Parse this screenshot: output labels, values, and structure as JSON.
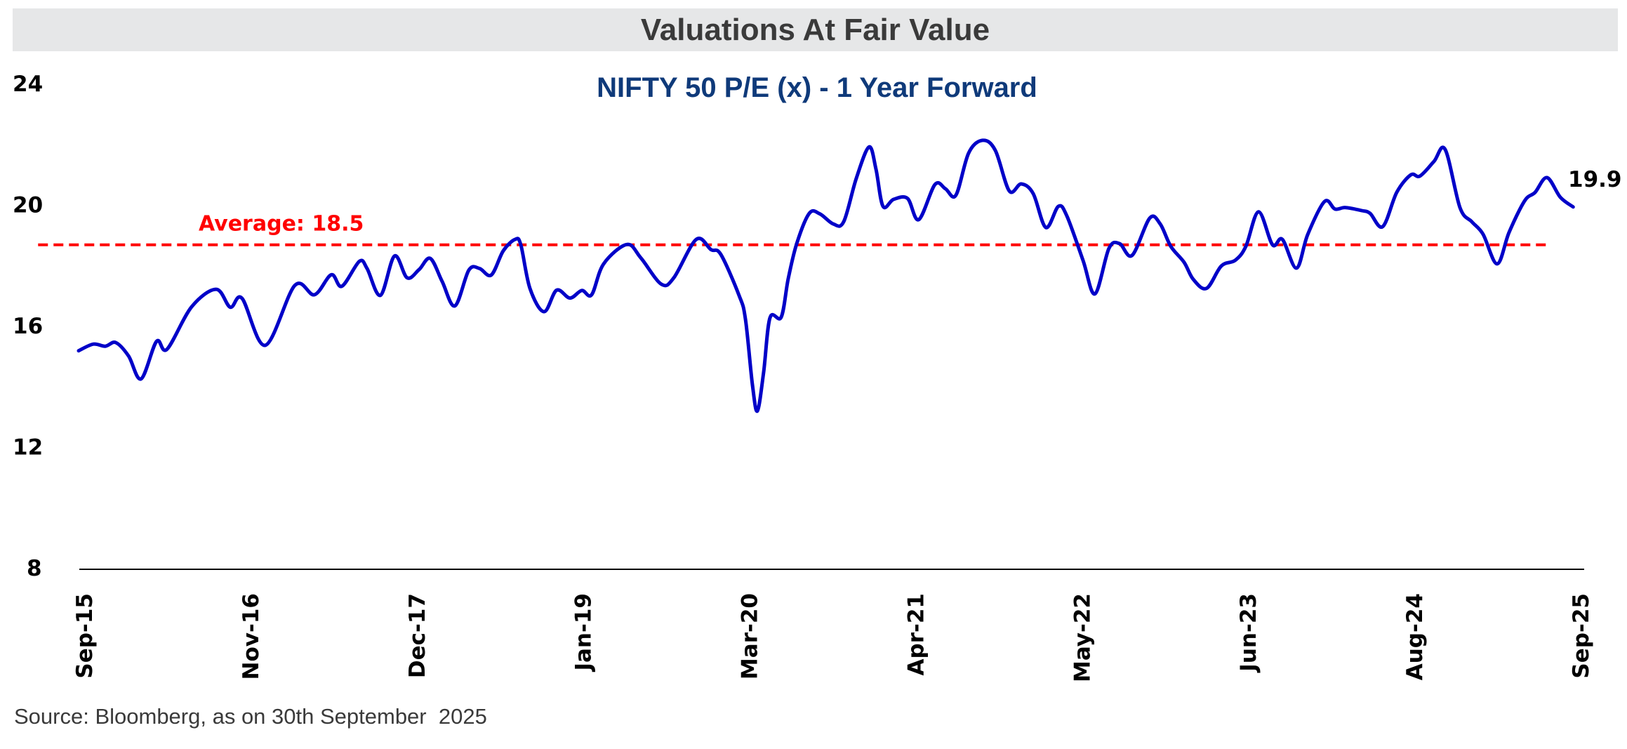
{
  "header": {
    "title": "Valuations At Fair Value"
  },
  "footer": {
    "source": "Source: Bloomberg, as on 30th September  2025"
  },
  "colors": {
    "title_band": "#e6e7e8",
    "title_text": "#3a3a3a",
    "subtitle": "#0f3a7a",
    "series_line": "#0000c8",
    "average_line": "#ff0000",
    "axis": "#000000"
  },
  "chart_data": {
    "type": "line",
    "title": "NIFTY 50 P/E (x) - 1 Year Forward",
    "xlabel": "",
    "ylabel": "",
    "ylim": [
      8,
      24
    ],
    "yticks": [
      24,
      20,
      16,
      12,
      8
    ],
    "x_unit": "months since Sep-15",
    "xlim_months": [
      0,
      120
    ],
    "xticks": [
      {
        "label": "Sep-15",
        "month": 0
      },
      {
        "label": "Nov-16",
        "month": 13.33
      },
      {
        "label": "Dec-17",
        "month": 26.67
      },
      {
        "label": "Jan-19",
        "month": 40
      },
      {
        "label": "Mar-20",
        "month": 53.33
      },
      {
        "label": "Apr-21",
        "month": 66.67
      },
      {
        "label": "May-22",
        "month": 80
      },
      {
        "label": "Jun-23",
        "month": 93.33
      },
      {
        "label": "Aug-24",
        "month": 106.67
      },
      {
        "label": "Sep-25",
        "month": 120
      }
    ],
    "grid": false,
    "legend": "none",
    "series": [
      {
        "name": "NIFTY 50 P/E (x) - 1 Year Forward",
        "points": [
          [
            -0.45,
            15.15
          ],
          [
            0.73,
            15.37
          ],
          [
            1.69,
            15.3
          ],
          [
            2.53,
            15.42
          ],
          [
            3.55,
            14.98
          ],
          [
            4.56,
            14.22
          ],
          [
            5.8,
            15.46
          ],
          [
            6.64,
            15.2
          ],
          [
            8.61,
            16.6
          ],
          [
            10.58,
            17.18
          ],
          [
            11.71,
            16.59
          ],
          [
            12.66,
            16.88
          ],
          [
            14.52,
            15.33
          ],
          [
            16.89,
            17.31
          ],
          [
            18.46,
            17.0
          ],
          [
            19.81,
            17.66
          ],
          [
            20.66,
            17.28
          ],
          [
            22.06,
            18.1
          ],
          [
            22.68,
            17.87
          ],
          [
            23.75,
            16.98
          ],
          [
            24.88,
            18.28
          ],
          [
            25.89,
            17.56
          ],
          [
            26.85,
            17.83
          ],
          [
            27.75,
            18.2
          ],
          [
            28.7,
            17.44
          ],
          [
            29.72,
            16.63
          ],
          [
            30.84,
            17.81
          ],
          [
            31.69,
            17.87
          ],
          [
            32.64,
            17.65
          ],
          [
            33.6,
            18.45
          ],
          [
            34.56,
            18.83
          ],
          [
            35.01,
            18.65
          ],
          [
            35.74,
            17.21
          ],
          [
            36.87,
            16.44
          ],
          [
            37.88,
            17.15
          ],
          [
            38.95,
            16.89
          ],
          [
            39.9,
            17.14
          ],
          [
            40.69,
            17.0
          ],
          [
            41.65,
            18.02
          ],
          [
            43.51,
            18.66
          ],
          [
            44.63,
            18.22
          ],
          [
            46.27,
            17.35
          ],
          [
            47.28,
            17.56
          ],
          [
            49.08,
            18.83
          ],
          [
            50.26,
            18.49
          ],
          [
            51.05,
            18.33
          ],
          [
            52.51,
            16.98
          ],
          [
            53.02,
            16.2
          ],
          [
            53.58,
            14.04
          ],
          [
            53.98,
            13.16
          ],
          [
            54.48,
            14.43
          ],
          [
            54.99,
            16.24
          ],
          [
            55.89,
            16.26
          ],
          [
            56.45,
            17.52
          ],
          [
            57.13,
            18.68
          ],
          [
            58.14,
            19.69
          ],
          [
            58.99,
            19.67
          ],
          [
            60.06,
            19.34
          ],
          [
            60.9,
            19.41
          ],
          [
            61.91,
            20.84
          ],
          [
            62.93,
            21.88
          ],
          [
            63.49,
            21.15
          ],
          [
            64.05,
            19.92
          ],
          [
            64.9,
            20.15
          ],
          [
            66.02,
            20.18
          ],
          [
            66.92,
            19.48
          ],
          [
            68.22,
            20.64
          ],
          [
            69.06,
            20.5
          ],
          [
            69.9,
            20.29
          ],
          [
            70.92,
            21.68
          ],
          [
            72.04,
            22.1
          ],
          [
            73.06,
            21.77
          ],
          [
            74.18,
            20.43
          ],
          [
            75.14,
            20.66
          ],
          [
            76.1,
            20.34
          ],
          [
            77.11,
            19.22
          ],
          [
            78.12,
            19.92
          ],
          [
            78.8,
            19.6
          ],
          [
            80.09,
            18.14
          ],
          [
            81.05,
            17.03
          ],
          [
            82.17,
            18.53
          ],
          [
            83.02,
            18.69
          ],
          [
            84.03,
            18.3
          ],
          [
            85.44,
            19.53
          ],
          [
            86.28,
            19.34
          ],
          [
            87.13,
            18.6
          ],
          [
            88.2,
            18.07
          ],
          [
            88.93,
            17.51
          ],
          [
            90.0,
            17.21
          ],
          [
            91.18,
            17.95
          ],
          [
            92.31,
            18.14
          ],
          [
            93.15,
            18.6
          ],
          [
            94.17,
            19.74
          ],
          [
            95.29,
            18.65
          ],
          [
            96.08,
            18.83
          ],
          [
            97.21,
            17.88
          ],
          [
            98.11,
            18.99
          ],
          [
            99.46,
            20.08
          ],
          [
            100.3,
            19.83
          ],
          [
            101.14,
            19.88
          ],
          [
            102.44,
            19.78
          ],
          [
            103.11,
            19.69
          ],
          [
            104.13,
            19.25
          ],
          [
            105.25,
            20.38
          ],
          [
            106.38,
            20.96
          ],
          [
            107.11,
            20.92
          ],
          [
            108.23,
            21.4
          ],
          [
            109.13,
            21.8
          ],
          [
            110.32,
            19.88
          ],
          [
            111.27,
            19.41
          ],
          [
            112.17,
            19.0
          ],
          [
            113.3,
            18.02
          ],
          [
            114.26,
            19.06
          ],
          [
            115.5,
            20.1
          ],
          [
            116.34,
            20.38
          ],
          [
            117.3,
            20.87
          ],
          [
            118.37,
            20.22
          ],
          [
            119.4,
            19.9
          ]
        ]
      }
    ],
    "average": {
      "label": "Average: 18.5",
      "value": 18.5,
      "plotted_level": 18.65,
      "x_start_month": -3.7,
      "x_end_month": 117.5,
      "style": "dashed"
    },
    "annotations": [
      {
        "text": "19.9",
        "month": 119.4,
        "value": 19.9,
        "position": "above-right of last point"
      }
    ]
  }
}
